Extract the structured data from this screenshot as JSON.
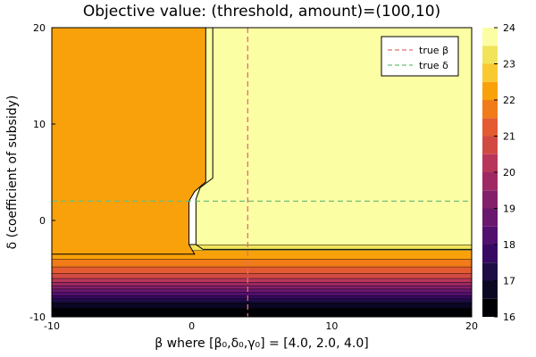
{
  "chart_data": {
    "type": "heatmap",
    "subtype": "filled-contour",
    "title": "Objective value: (threshold, amount)=(100,10)",
    "xlabel": "β where [β₀,δ₀,γ₀] = [4.0, 2.0, 4.0]",
    "ylabel": "δ (coefficient of subsidy)",
    "xlim": [
      -10,
      20
    ],
    "ylim": [
      -10,
      20
    ],
    "xticks": [
      -10,
      0,
      10,
      20
    ],
    "yticks": [
      -10,
      0,
      10,
      20
    ],
    "grid": false,
    "legend_position": "top-right",
    "reference_lines": [
      {
        "name": "true β",
        "orientation": "vertical",
        "value": 4.0,
        "color": "#e26f6f",
        "style": "dashed"
      },
      {
        "name": "true δ",
        "orientation": "horizontal",
        "value": 2.0,
        "color": "#6fbd7a",
        "style": "dashed"
      }
    ],
    "colorbar": {
      "min": 16,
      "max": 24,
      "ticks": [
        16,
        17,
        18,
        19,
        20,
        21,
        22,
        23,
        24
      ],
      "levels": [
        {
          "lo": 16.0,
          "hi": 16.5,
          "color": "#000004"
        },
        {
          "lo": 16.5,
          "hi": 17.0,
          "color": "#0a0722"
        },
        {
          "lo": 17.0,
          "hi": 17.5,
          "color": "#1e0c45"
        },
        {
          "lo": 17.5,
          "hi": 18.0,
          "color": "#380962"
        },
        {
          "lo": 18.0,
          "hi": 18.5,
          "color": "#51106e"
        },
        {
          "lo": 18.5,
          "hi": 19.0,
          "color": "#6a176e"
        },
        {
          "lo": 19.0,
          "hi": 19.5,
          "color": "#84206b"
        },
        {
          "lo": 19.5,
          "hi": 20.0,
          "color": "#9f2a63"
        },
        {
          "lo": 20.0,
          "hi": 20.5,
          "color": "#b8365a"
        },
        {
          "lo": 20.5,
          "hi": 21.0,
          "color": "#d14a42"
        },
        {
          "lo": 21.0,
          "hi": 21.5,
          "color": "#e45a31"
        },
        {
          "lo": 21.5,
          "hi": 22.0,
          "color": "#f07b18"
        },
        {
          "lo": 22.0,
          "hi": 22.5,
          "color": "#f9a10a"
        },
        {
          "lo": 22.5,
          "hi": 23.0,
          "color": "#f9c932"
        },
        {
          "lo": 23.0,
          "hi": 23.5,
          "color": "#f1e45a"
        },
        {
          "lo": 23.5,
          "hi": 24.0,
          "color": "#fcfea4"
        }
      ]
    },
    "regions": [
      {
        "name": "upper-left plateau",
        "level": 22.2,
        "x": [
          -10,
          0
        ],
        "y": [
          -3.5,
          20
        ],
        "color": "#f9a10a"
      },
      {
        "name": "upper-right plateau",
        "level": 23.8,
        "x": [
          0,
          20
        ],
        "y": [
          -2.5,
          20
        ],
        "color": "#fcfea4"
      },
      {
        "name": "lower band",
        "level_range": [
          16,
          23.5
        ],
        "y": [
          -10,
          -2.5
        ]
      }
    ]
  }
}
